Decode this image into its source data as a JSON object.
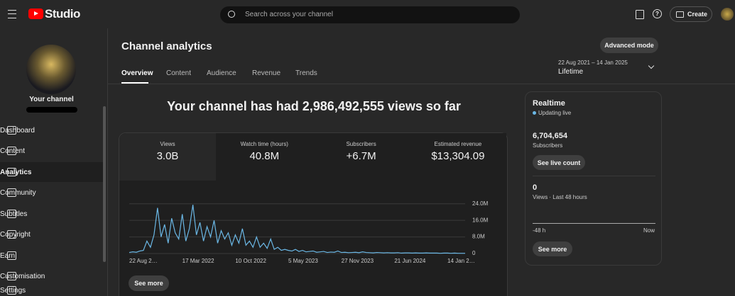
{
  "header": {
    "logo": "Studio",
    "search_placeholder": "Search across your channel",
    "create": "Create"
  },
  "sidebar": {
    "channel_title": "Your channel",
    "items": [
      "Dashboard",
      "Content",
      "Analytics",
      "Community",
      "Subtitles",
      "Copyright",
      "Earn",
      "Customisation",
      "Settings"
    ],
    "active": 2
  },
  "main": {
    "title": "Channel analytics",
    "tabs": [
      "Overview",
      "Content",
      "Audience",
      "Revenue",
      "Trends"
    ],
    "advanced_mode": "Advanced mode",
    "date_range": "22 Aug 2021 – 14 Jan 2025",
    "period": "Lifetime",
    "headline": "Your channel has had 2,986,492,555 views so far",
    "metrics": [
      {
        "label": "Views",
        "value": "3.0B"
      },
      {
        "label": "Watch time (hours)",
        "value": "40.8M"
      },
      {
        "label": "Subscribers",
        "value": "+6.7M"
      },
      {
        "label": "Estimated revenue",
        "value": "$13,304.09"
      }
    ],
    "chart": {
      "type": "line",
      "color": "#6bb8e6",
      "ylim": [
        0,
        27000000
      ],
      "yticks": [
        0,
        {
          "value": 8000000,
          "label": "8.0M"
        },
        {
          "value": 16000000,
          "label": "16.0M"
        },
        {
          "value": 24000000,
          "label": "24.0M"
        }
      ],
      "x_labels": [
        "22 Aug 2…",
        "17 Mar 2022",
        "10 Oct 2022",
        "5 May 2023",
        "27 Nov 2023",
        "21 Jun 2024",
        "14 Jan 2…"
      ],
      "values": [
        500000,
        800000,
        600000,
        1200000,
        1500000,
        6000000,
        3000000,
        9000000,
        22000000,
        8000000,
        14000000,
        5000000,
        17000000,
        10000000,
        7000000,
        19000000,
        6000000,
        12000000,
        23500000,
        9000000,
        15000000,
        6000000,
        13000000,
        8000000,
        16000000,
        5000000,
        11000000,
        7000000,
        10000000,
        4000000,
        9000000,
        5000000,
        12000000,
        4000000,
        6000000,
        3000000,
        8000000,
        3000000,
        5000000,
        2500000,
        7000000,
        2000000,
        3000000,
        1500000,
        2000000,
        1500000,
        1200000,
        2000000,
        1000000,
        1500000,
        800000,
        1000000,
        1200000,
        600000,
        800000,
        1000000,
        500000,
        700000,
        600000,
        1200000,
        500000,
        600000,
        400000,
        500000,
        600000,
        400000,
        800000,
        500000,
        400000,
        300000,
        500000,
        400000,
        300000,
        400000,
        300000,
        300000,
        400000,
        200000,
        300000,
        300000,
        200000,
        300000,
        200000,
        200000,
        300000,
        200000,
        200000,
        200000,
        100000,
        200000,
        200000,
        100000,
        200000,
        100000,
        100000,
        100000
      ]
    },
    "see_more": "See more"
  },
  "realtime": {
    "title": "Realtime",
    "status": "Updating live",
    "subscribers": "6,704,654",
    "subscribers_label": "Subscribers",
    "live_count_button": "See live count",
    "views": "0",
    "views_label": "Views · Last 48 hours",
    "axis_start": "-48 h",
    "axis_end": "Now",
    "see_more": "See more"
  }
}
